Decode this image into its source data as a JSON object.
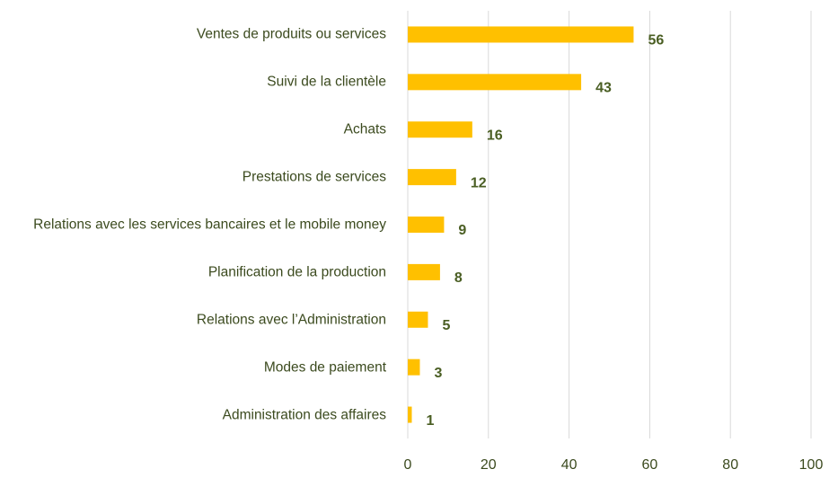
{
  "chart_data": {
    "type": "bar",
    "orientation": "horizontal",
    "categories": [
      "Ventes de produits ou services",
      "Suivi de la clientèle",
      "Achats",
      "Prestations de services",
      "Relations avec les services bancaires et le mobile money",
      "Planification de la production",
      "Relations avec l’Administration",
      "Modes de paiement",
      "Administration des affaires"
    ],
    "values": [
      56,
      43,
      16,
      12,
      9,
      8,
      5,
      3,
      1
    ],
    "color": "#ffc000",
    "xlim": [
      0,
      100
    ],
    "xticks": [
      0,
      20,
      40,
      60,
      80,
      100
    ],
    "grid": true
  }
}
